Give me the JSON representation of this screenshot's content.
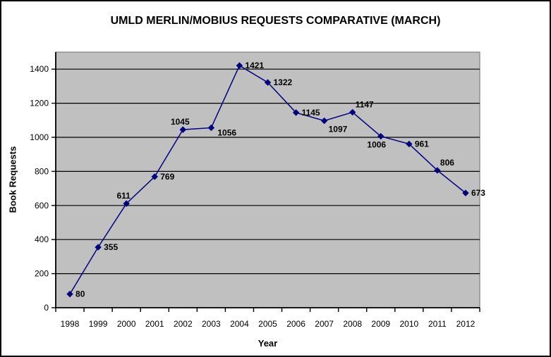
{
  "chart_data": {
    "type": "line",
    "title": "UMLD MERLIN/MOBIUS REQUESTS COMPARATIVE (MARCH)",
    "xlabel": "Year",
    "ylabel": "Book Requests",
    "categories": [
      "1998",
      "1999",
      "2000",
      "2001",
      "2002",
      "2003",
      "2004",
      "2005",
      "2006",
      "2007",
      "2008",
      "2009",
      "2010",
      "2011",
      "2012"
    ],
    "series": [
      {
        "name": "Book Requests",
        "values": [
          80,
          355,
          611,
          769,
          1045,
          1056,
          1421,
          1322,
          1145,
          1097,
          1147,
          1006,
          961,
          806,
          673
        ]
      }
    ],
    "data_labels": true,
    "label_positions": [
      "right",
      "right",
      "above",
      "right",
      "above",
      "right-below",
      "right",
      "right",
      "right",
      "below-right",
      "above-right",
      "below",
      "right",
      "above-right",
      "right"
    ],
    "ylim": [
      0,
      1500
    ],
    "yticks": [
      0,
      200,
      400,
      600,
      800,
      1000,
      1200,
      1400
    ],
    "grid": true,
    "legend": "none",
    "marker": "diamond",
    "colors": {
      "line": "#000080",
      "marker": "#000080",
      "plot_bg": "#C0C0C0",
      "plot_border": "#808080",
      "gridline": "#000000",
      "axis": "#000000",
      "text": "#000000",
      "page_bg": "#FFFFFF",
      "page_border": "#000000"
    }
  }
}
